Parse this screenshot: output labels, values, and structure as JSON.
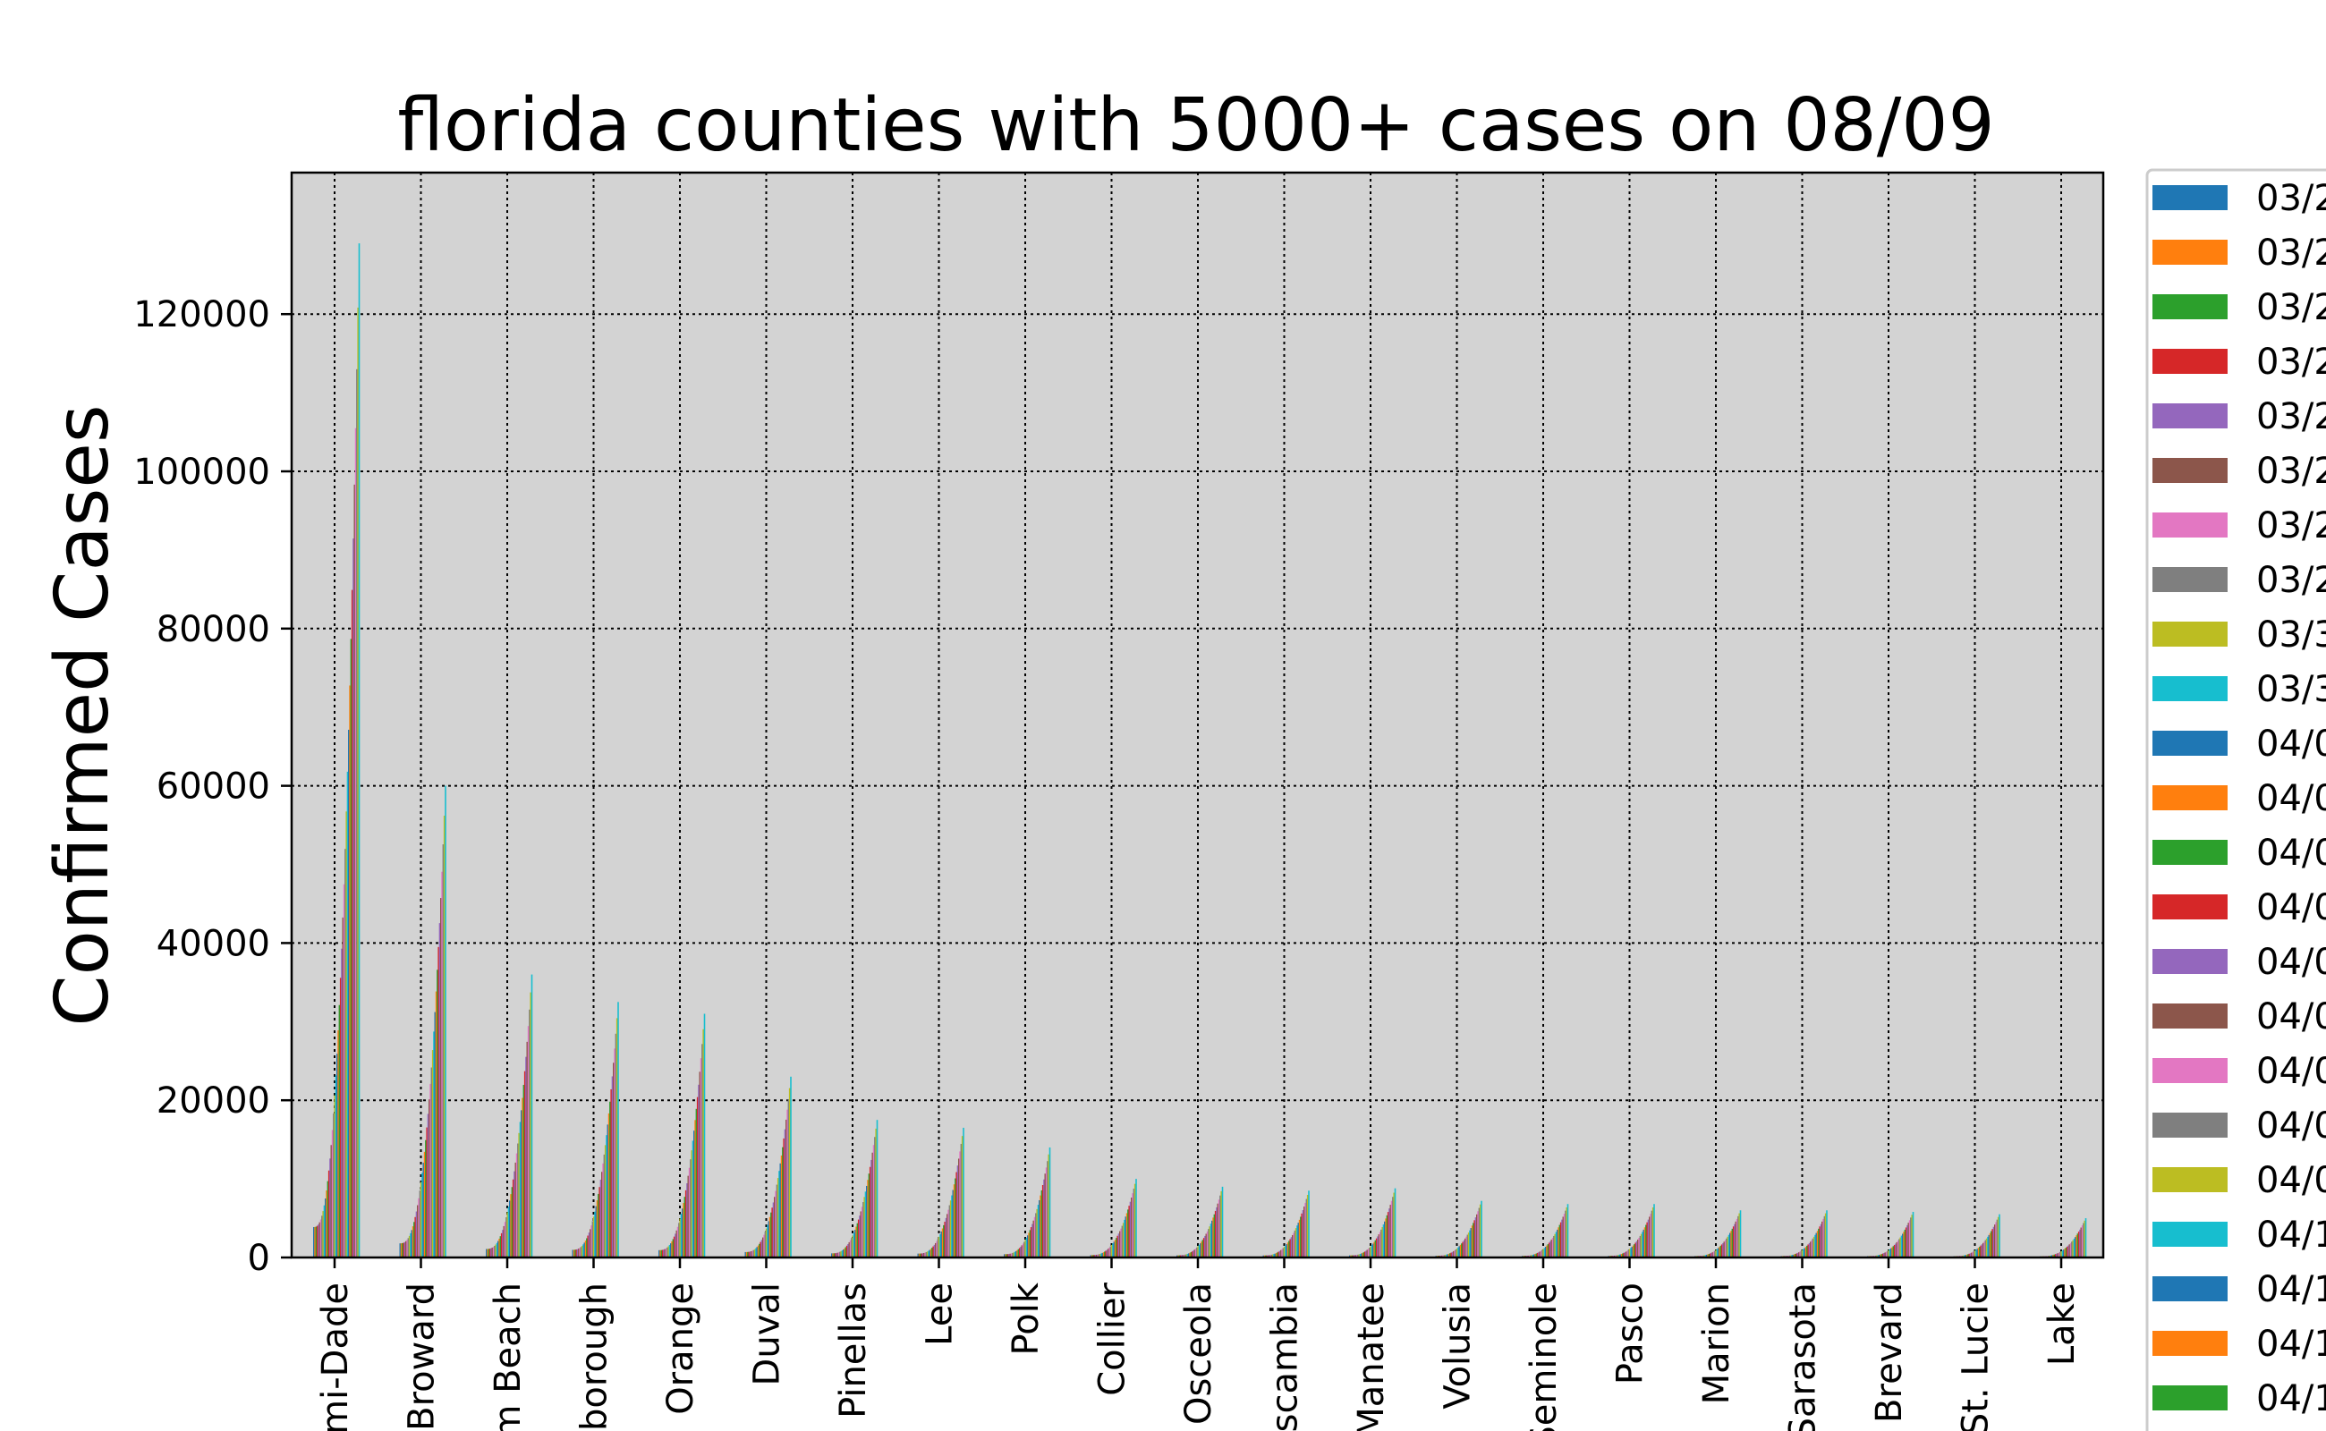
{
  "chart_data": {
    "type": "bar",
    "title": "florida counties with 5000+ cases on 08/09",
    "xlabel": "",
    "ylabel": "Confirmed Cases",
    "ylim": [
      0,
      138000
    ],
    "yticks": [
      0,
      20000,
      40000,
      60000,
      80000,
      100000,
      120000
    ],
    "grid": true,
    "legend_placement": "outside-right",
    "plot_background": "#d3d3d3",
    "categories": [
      "mi-Dade",
      "Broward",
      "m Beach",
      "borough",
      "Orange",
      "Duval",
      "Pinellas",
      "Lee",
      "Polk",
      "Collier",
      "Osceola",
      "scambia",
      "Manatee",
      "Volusia",
      "Seminole",
      "Pasco",
      "Marion",
      "Sarasota",
      "Brevard",
      "St. Lucie",
      "Lake"
    ],
    "series_palette": [
      "#1f77b4",
      "#ff7f0e",
      "#2ca02c",
      "#d62728",
      "#9467bd",
      "#8c564b",
      "#e377c2",
      "#7f7f7f",
      "#bcbd22",
      "#17becf"
    ],
    "legend_entries": [
      "03/2",
      "03/2",
      "03/2",
      "03/2",
      "03/2",
      "03/2",
      "03/2",
      "03/2",
      "03/3",
      "03/3",
      "04/0",
      "04/0",
      "04/0",
      "04/0",
      "04/0",
      "04/0",
      "04/0",
      "04/0",
      "04/0",
      "04/1",
      "04/1",
      "04/1",
      "04/1"
    ],
    "values_on_last_date": [
      129000,
      60000,
      36000,
      32500,
      31000,
      23000,
      17500,
      16500,
      14000,
      10000,
      9000,
      8500,
      8800,
      7200,
      6800,
      6800,
      6000,
      6000,
      5800,
      5500,
      5000
    ]
  }
}
